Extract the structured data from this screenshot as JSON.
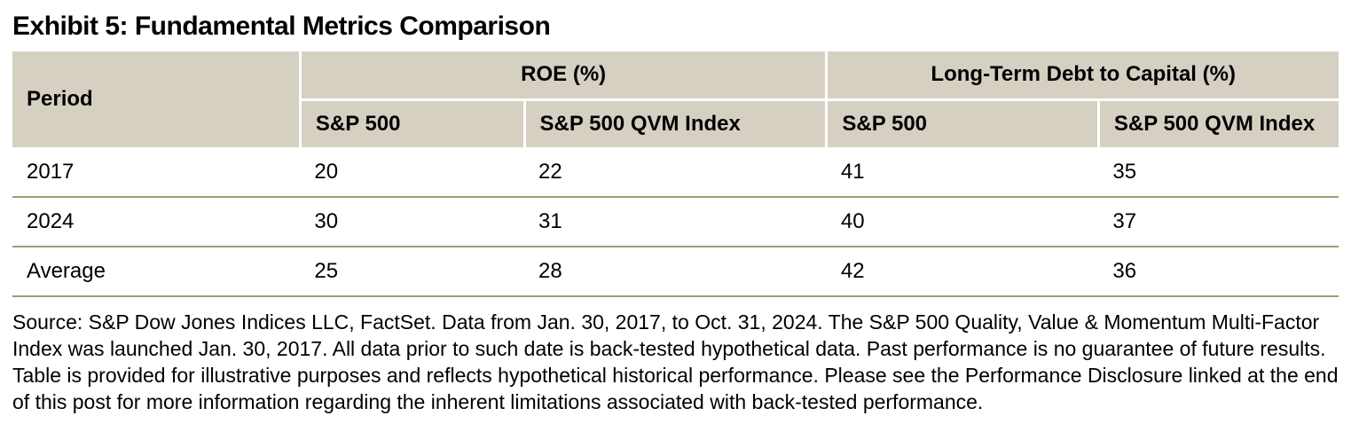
{
  "title": "Exhibit 5: Fundamental Metrics Comparison",
  "table": {
    "header": {
      "period_label": "Period",
      "groups": [
        {
          "label": "ROE (%)",
          "subcolumns": [
            "S&P 500",
            "S&P 500 QVM Index"
          ]
        },
        {
          "label": "Long-Term Debt to Capital (%)",
          "subcolumns": [
            "S&P 500",
            "S&P 500 QVM Index"
          ]
        }
      ]
    },
    "rows": [
      {
        "period": "2017",
        "values": [
          "20",
          "22",
          "41",
          "35"
        ]
      },
      {
        "period": "2024",
        "values": [
          "30",
          "31",
          "40",
          "37"
        ]
      },
      {
        "period": "Average",
        "values": [
          "25",
          "28",
          "42",
          "36"
        ]
      }
    ]
  },
  "footer": {
    "source_text": "Source: S&P Dow Jones Indices LLC, FactSet. Data from Jan. 30, 2017, to Oct. 31, 2024. The S&P 500 Quality, Value & Momentum Multi-Factor Index was launched Jan. 30, 2017. All data prior to such date is back-tested hypothetical data. Past performance is no guarantee of future results. Table is provided for illustrative purposes and reflects hypothetical historical performance. Please see the Performance Disclosure linked at the end of this post for more information regarding the inherent limitations associated with back-tested performance."
  },
  "colors": {
    "header_bg": "#d6d0c3",
    "row_divider": "#a59972",
    "text": "#000000",
    "page_bg": "#ffffff"
  }
}
